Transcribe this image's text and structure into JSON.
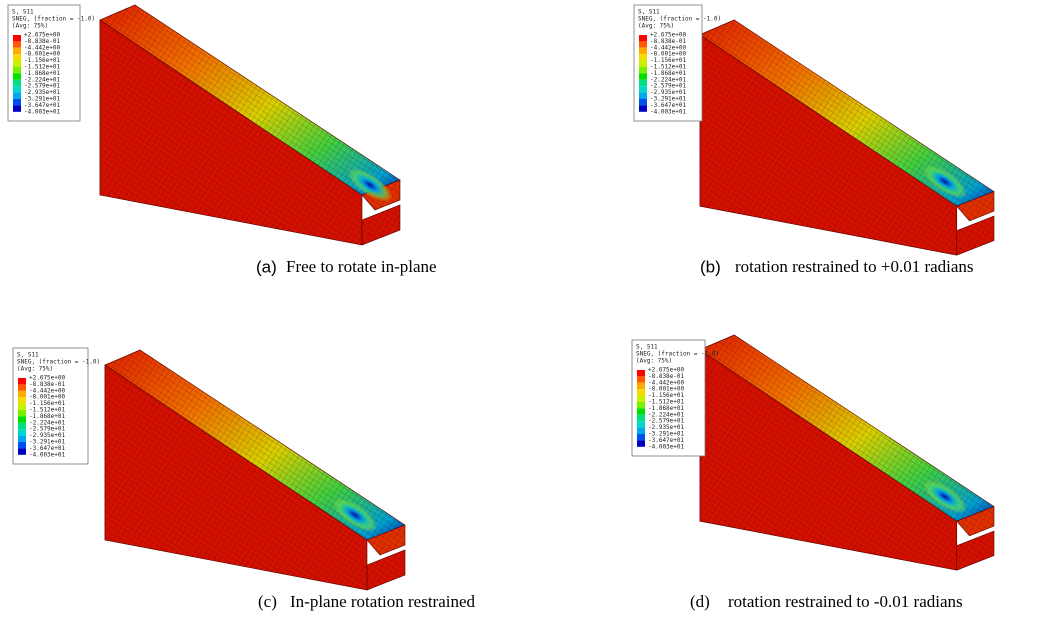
{
  "panels": [
    {
      "legend": {
        "lines": [
          "S, S11",
          "SNEG, (fraction = -1.0)",
          "(Avg: 75%)"
        ],
        "values": [
          "+2.675e+00",
          "-8.838e-01",
          "-4.442e+00",
          "-8.001e+00",
          "-1.156e+01",
          "-1.512e+01",
          "-1.868e+01",
          "-2.224e+01",
          "-2.579e+01",
          "-2.935e+01",
          "-3.291e+01",
          "-3.647e+01",
          "-4.003e+01"
        ]
      },
      "caption": {
        "label": "(a)",
        "text": "Free to rotate in-plane"
      }
    },
    {
      "legend": {
        "lines": [
          "S, S11",
          "SNEG, (fraction = -1.0)",
          "(Avg: 75%)"
        ],
        "values": [
          "+2.675e+00",
          "-8.838e-01",
          "-4.442e+00",
          "-8.001e+00",
          "-1.156e+01",
          "-1.512e+01",
          "-1.868e+01",
          "-2.224e+01",
          "-2.579e+01",
          "-2.935e+01",
          "-3.291e+01",
          "-3.647e+01",
          "-4.003e+01"
        ]
      },
      "caption": {
        "label": "(b)",
        "text": "rotation restrained to +0.01 radians"
      }
    },
    {
      "legend": {
        "lines": [
          "S, S11",
          "SNEG, (fraction = -1.0)",
          "(Avg: 75%)"
        ],
        "values": [
          "+2.675e+00",
          "-8.838e-01",
          "-4.442e+00",
          "-8.001e+00",
          "-1.156e+01",
          "-1.512e+01",
          "-1.868e+01",
          "-2.224e+01",
          "-2.579e+01",
          "-2.935e+01",
          "-3.291e+01",
          "-3.647e+01",
          "-4.003e+01"
        ]
      },
      "caption": {
        "label": "(c)",
        "text": "In-plane rotation restrained"
      }
    },
    {
      "legend": {
        "lines": [
          "S, S11",
          "SNEG, (fraction = -1.0)",
          "(Avg: 75%)"
        ],
        "values": [
          "+2.675e+00",
          "-8.838e-01",
          "-4.442e+00",
          "-8.001e+00",
          "-1.156e+01",
          "-1.512e+01",
          "-1.868e+01",
          "-2.224e+01",
          "-2.579e+01",
          "-2.935e+01",
          "-3.291e+01",
          "-3.647e+01",
          "-4.003e+01"
        ]
      },
      "caption": {
        "label": "(d)",
        "text": "rotation restrained to -0.01 radians"
      }
    }
  ]
}
